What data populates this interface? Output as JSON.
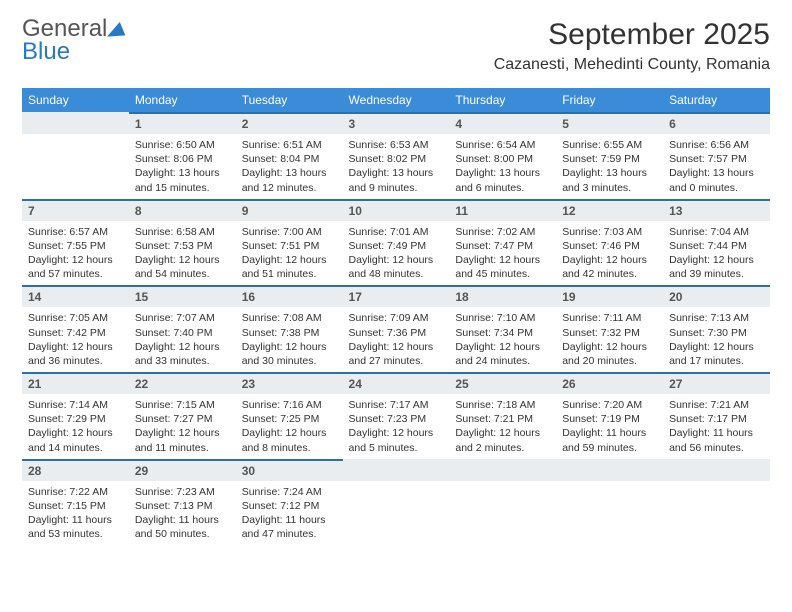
{
  "logo": {
    "word1": "General",
    "word2": "Blue"
  },
  "title": "September 2025",
  "location": "Cazanesti, Mehedinti County, Romania",
  "colors": {
    "header_bg": "#3a8bd8",
    "header_border": "#2f6fa8",
    "daynum_bg": "#e9edef",
    "accent": "#2b78c2"
  },
  "weekdays": [
    "Sunday",
    "Monday",
    "Tuesday",
    "Wednesday",
    "Thursday",
    "Friday",
    "Saturday"
  ],
  "leading_empty": 1,
  "days": [
    {
      "n": "1",
      "sunrise": "6:50 AM",
      "sunset": "8:06 PM",
      "daylight": "13 hours and 15 minutes."
    },
    {
      "n": "2",
      "sunrise": "6:51 AM",
      "sunset": "8:04 PM",
      "daylight": "13 hours and 12 minutes."
    },
    {
      "n": "3",
      "sunrise": "6:53 AM",
      "sunset": "8:02 PM",
      "daylight": "13 hours and 9 minutes."
    },
    {
      "n": "4",
      "sunrise": "6:54 AM",
      "sunset": "8:00 PM",
      "daylight": "13 hours and 6 minutes."
    },
    {
      "n": "5",
      "sunrise": "6:55 AM",
      "sunset": "7:59 PM",
      "daylight": "13 hours and 3 minutes."
    },
    {
      "n": "6",
      "sunrise": "6:56 AM",
      "sunset": "7:57 PM",
      "daylight": "13 hours and 0 minutes."
    },
    {
      "n": "7",
      "sunrise": "6:57 AM",
      "sunset": "7:55 PM",
      "daylight": "12 hours and 57 minutes."
    },
    {
      "n": "8",
      "sunrise": "6:58 AM",
      "sunset": "7:53 PM",
      "daylight": "12 hours and 54 minutes."
    },
    {
      "n": "9",
      "sunrise": "7:00 AM",
      "sunset": "7:51 PM",
      "daylight": "12 hours and 51 minutes."
    },
    {
      "n": "10",
      "sunrise": "7:01 AM",
      "sunset": "7:49 PM",
      "daylight": "12 hours and 48 minutes."
    },
    {
      "n": "11",
      "sunrise": "7:02 AM",
      "sunset": "7:47 PM",
      "daylight": "12 hours and 45 minutes."
    },
    {
      "n": "12",
      "sunrise": "7:03 AM",
      "sunset": "7:46 PM",
      "daylight": "12 hours and 42 minutes."
    },
    {
      "n": "13",
      "sunrise": "7:04 AM",
      "sunset": "7:44 PM",
      "daylight": "12 hours and 39 minutes."
    },
    {
      "n": "14",
      "sunrise": "7:05 AM",
      "sunset": "7:42 PM",
      "daylight": "12 hours and 36 minutes."
    },
    {
      "n": "15",
      "sunrise": "7:07 AM",
      "sunset": "7:40 PM",
      "daylight": "12 hours and 33 minutes."
    },
    {
      "n": "16",
      "sunrise": "7:08 AM",
      "sunset": "7:38 PM",
      "daylight": "12 hours and 30 minutes."
    },
    {
      "n": "17",
      "sunrise": "7:09 AM",
      "sunset": "7:36 PM",
      "daylight": "12 hours and 27 minutes."
    },
    {
      "n": "18",
      "sunrise": "7:10 AM",
      "sunset": "7:34 PM",
      "daylight": "12 hours and 24 minutes."
    },
    {
      "n": "19",
      "sunrise": "7:11 AM",
      "sunset": "7:32 PM",
      "daylight": "12 hours and 20 minutes."
    },
    {
      "n": "20",
      "sunrise": "7:13 AM",
      "sunset": "7:30 PM",
      "daylight": "12 hours and 17 minutes."
    },
    {
      "n": "21",
      "sunrise": "7:14 AM",
      "sunset": "7:29 PM",
      "daylight": "12 hours and 14 minutes."
    },
    {
      "n": "22",
      "sunrise": "7:15 AM",
      "sunset": "7:27 PM",
      "daylight": "12 hours and 11 minutes."
    },
    {
      "n": "23",
      "sunrise": "7:16 AM",
      "sunset": "7:25 PM",
      "daylight": "12 hours and 8 minutes."
    },
    {
      "n": "24",
      "sunrise": "7:17 AM",
      "sunset": "7:23 PM",
      "daylight": "12 hours and 5 minutes."
    },
    {
      "n": "25",
      "sunrise": "7:18 AM",
      "sunset": "7:21 PM",
      "daylight": "12 hours and 2 minutes."
    },
    {
      "n": "26",
      "sunrise": "7:20 AM",
      "sunset": "7:19 PM",
      "daylight": "11 hours and 59 minutes."
    },
    {
      "n": "27",
      "sunrise": "7:21 AM",
      "sunset": "7:17 PM",
      "daylight": "11 hours and 56 minutes."
    },
    {
      "n": "28",
      "sunrise": "7:22 AM",
      "sunset": "7:15 PM",
      "daylight": "11 hours and 53 minutes."
    },
    {
      "n": "29",
      "sunrise": "7:23 AM",
      "sunset": "7:13 PM",
      "daylight": "11 hours and 50 minutes."
    },
    {
      "n": "30",
      "sunrise": "7:24 AM",
      "sunset": "7:12 PM",
      "daylight": "11 hours and 47 minutes."
    }
  ],
  "labels": {
    "sunrise": "Sunrise:",
    "sunset": "Sunset:",
    "daylight": "Daylight:"
  }
}
